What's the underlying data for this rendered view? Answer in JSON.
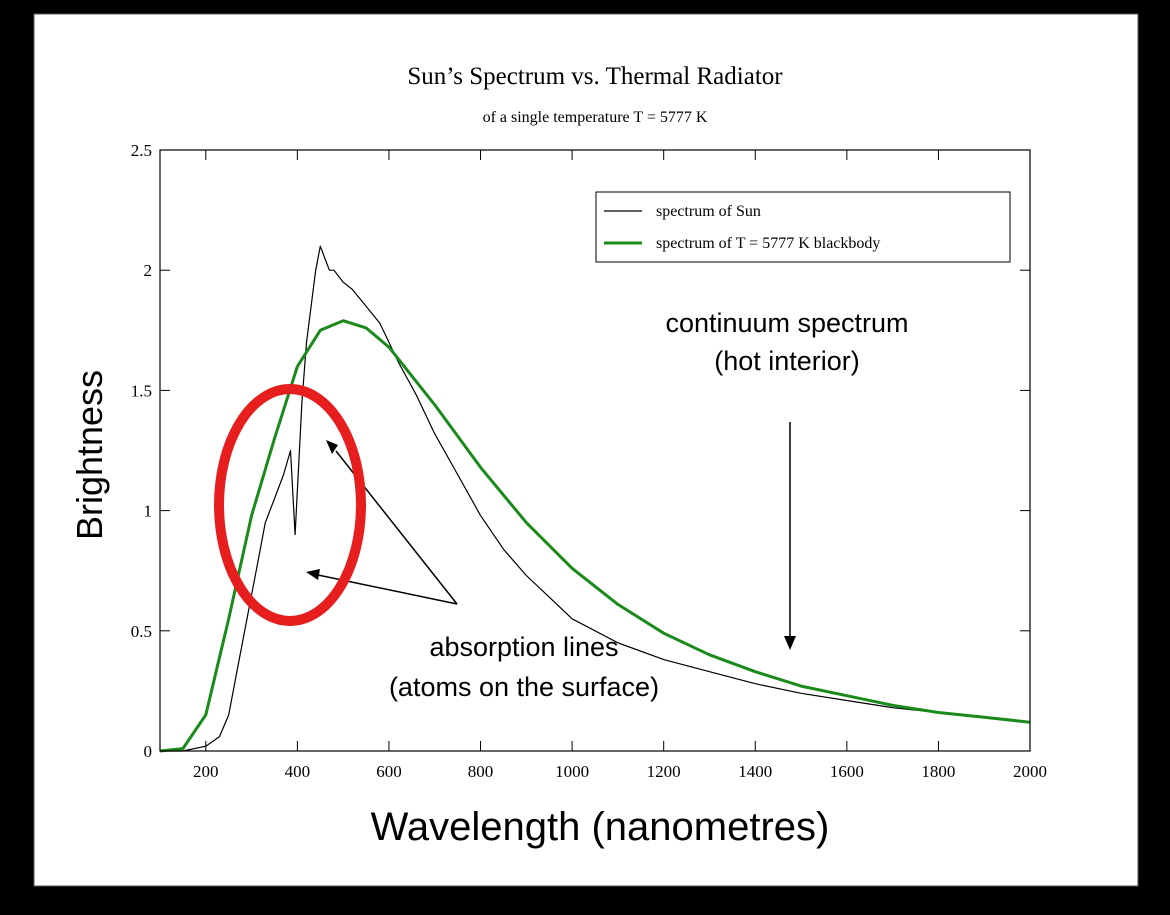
{
  "chart_data": {
    "type": "line",
    "title": "Sun’s Spectrum vs. Thermal Radiator",
    "subtitle": "of a single temperature T = 5777 K",
    "xlabel": "Wavelength (nanometres)",
    "ylabel": "Brightness",
    "xlim": [
      100,
      2000
    ],
    "ylim": [
      0,
      2.5
    ],
    "x_ticks": [
      200,
      400,
      600,
      800,
      1000,
      1200,
      1400,
      1600,
      1800,
      2000
    ],
    "y_ticks": [
      0,
      0.5,
      1,
      1.5,
      2,
      2.5
    ],
    "y_tick_labels": [
      "0",
      "0.5",
      "1",
      "1.5",
      "2",
      "2.5"
    ],
    "grid": false,
    "legend_position": "top-right",
    "series": [
      {
        "name": "spectrum of Sun",
        "color": "#000000",
        "x": [
          100,
          150,
          200,
          230,
          250,
          270,
          290,
          310,
          330,
          350,
          370,
          385,
          395,
          410,
          420,
          430,
          440,
          450,
          460,
          470,
          480,
          500,
          520,
          550,
          580,
          620,
          660,
          700,
          750,
          800,
          850,
          900,
          950,
          1000,
          1100,
          1200,
          1300,
          1400,
          1500,
          1600,
          1700,
          1800,
          1900,
          2000
        ],
        "y": [
          0,
          0,
          0.02,
          0.06,
          0.15,
          0.35,
          0.55,
          0.75,
          0.95,
          1.05,
          1.15,
          1.25,
          0.9,
          1.45,
          1.7,
          1.85,
          2.0,
          2.1,
          2.05,
          2.0,
          2.0,
          1.95,
          1.92,
          1.85,
          1.78,
          1.62,
          1.48,
          1.32,
          1.15,
          0.98,
          0.84,
          0.73,
          0.64,
          0.55,
          0.45,
          0.38,
          0.33,
          0.28,
          0.24,
          0.21,
          0.18,
          0.16,
          0.14,
          0.12
        ]
      },
      {
        "name": "spectrum of T = 5777 K blackbody",
        "color": "#1a8a1a",
        "x": [
          100,
          150,
          200,
          250,
          300,
          350,
          400,
          450,
          500,
          550,
          600,
          700,
          800,
          900,
          1000,
          1100,
          1200,
          1300,
          1400,
          1500,
          1600,
          1700,
          1800,
          1900,
          2000
        ],
        "y": [
          0,
          0.01,
          0.15,
          0.55,
          0.98,
          1.3,
          1.6,
          1.75,
          1.79,
          1.76,
          1.68,
          1.44,
          1.18,
          0.95,
          0.76,
          0.61,
          0.49,
          0.4,
          0.33,
          0.27,
          0.23,
          0.19,
          0.16,
          0.14,
          0.12
        ]
      }
    ],
    "annotations": [
      {
        "id": "continuum",
        "lines": [
          "continuum spectrum",
          "(hot interior)"
        ]
      },
      {
        "id": "absorption",
        "lines": [
          "absorption lines",
          "(atoms on the surface)"
        ]
      }
    ],
    "highlight_color": "#e61e1e"
  }
}
